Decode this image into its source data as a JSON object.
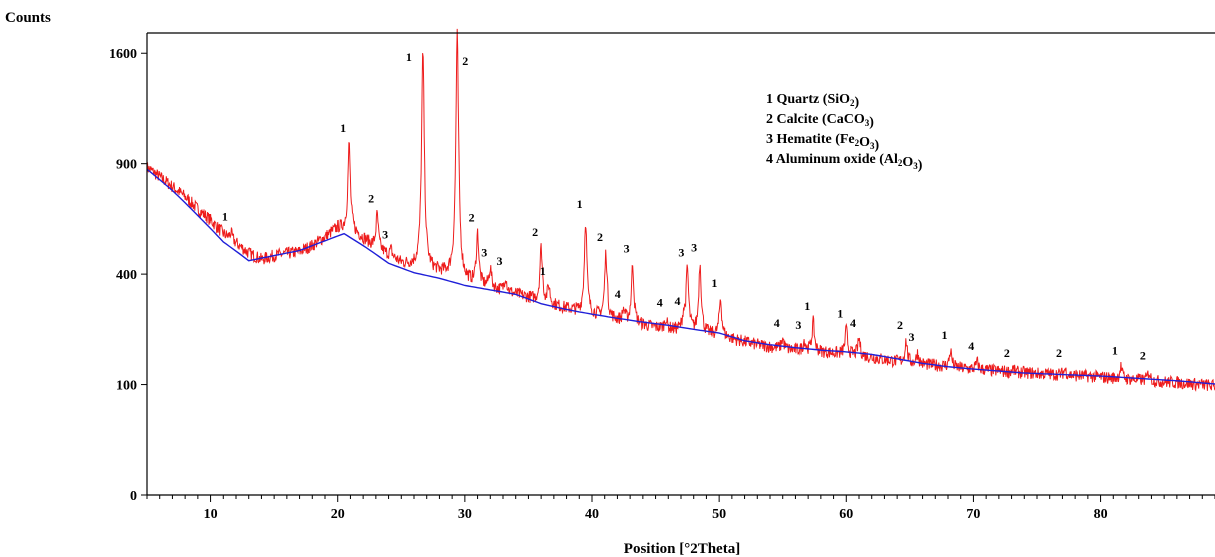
{
  "chart_data": {
    "type": "line",
    "title": "",
    "xlabel": "Position [°2Theta]",
    "ylabel": "Counts",
    "xlim": [
      5,
      89
    ],
    "y_scale": "sqrt",
    "ylim": [
      0,
      1750
    ],
    "x_ticks": [
      10,
      20,
      30,
      40,
      50,
      60,
      70,
      80
    ],
    "y_ticks": [
      0,
      100,
      400,
      900,
      1600
    ],
    "grid": false,
    "legend_placement": "top-right",
    "colors": {
      "measured": "#ee1c1c",
      "background": "#1f1fd8"
    },
    "series": [
      {
        "color": "#ee1c1c",
        "role": "measured",
        "x": [
          5,
          6,
          7,
          8,
          9,
          10,
          11,
          12,
          13,
          14,
          15,
          16,
          17,
          18,
          19,
          20,
          21,
          22,
          23,
          24,
          25,
          26,
          27,
          28,
          29,
          30,
          31,
          32,
          33,
          34,
          35,
          36,
          37,
          38,
          39,
          40,
          41,
          42,
          43,
          44,
          45,
          46,
          47,
          48,
          49,
          50,
          51,
          52,
          53,
          54,
          55,
          56,
          57,
          58,
          59,
          60,
          61,
          62,
          63,
          64,
          65,
          66,
          67,
          68,
          69,
          70,
          71,
          72,
          73,
          74,
          75,
          76,
          77,
          78,
          79,
          80,
          81,
          82,
          83,
          84,
          85,
          86,
          87,
          88,
          89
        ],
        "y": [
          880,
          830,
          780,
          730,
          670,
          620,
          560,
          520,
          480,
          455,
          470,
          478,
          485,
          510,
          545,
          585,
          575,
          540,
          500,
          470,
          440,
          430,
          418,
          405,
          395,
          375,
          360,
          352,
          340,
          330,
          320,
          305,
          295,
          285,
          275,
          266,
          258,
          250,
          242,
          236,
          230,
          225,
          222,
          218,
          213,
          208,
          200,
          192,
          185,
          180,
          175,
          172,
          170,
          168,
          165,
          162,
          159,
          155,
          150,
          146,
          142,
          140,
          138,
          135,
          132,
          130,
          128,
          126,
          124,
          123,
          121,
          120,
          119,
          117,
          116,
          114,
          112,
          110,
          109,
          107,
          105,
          104,
          102,
          100,
          98
        ]
      },
      {
        "color": "#1f1fd8",
        "role": "background",
        "x": [
          5,
          7,
          9,
          11,
          13,
          15,
          17,
          19,
          20.5,
          22,
          24,
          26,
          28,
          30,
          32,
          34,
          36,
          38,
          40,
          42,
          44,
          46,
          48,
          50,
          52,
          54,
          56,
          58,
          60,
          62,
          64,
          66,
          68,
          70,
          72,
          74,
          76,
          78,
          80,
          82,
          84,
          86,
          88,
          89
        ],
        "y": [
          870,
          760,
          640,
          525,
          450,
          470,
          490,
          530,
          560,
          510,
          440,
          405,
          385,
          360,
          345,
          330,
          300,
          282,
          268,
          256,
          245,
          236,
          225,
          215,
          195,
          185,
          178,
          172,
          168,
          162,
          152,
          142,
          135,
          130,
          126,
          122,
          120,
          118,
          116,
          113,
          110,
          107,
          103,
          101
        ]
      }
    ],
    "peaks": [
      {
        "x": 11.6,
        "y": 565,
        "label": "1"
      },
      {
        "x": 20.9,
        "y": 1010,
        "label": "1"
      },
      {
        "x": 23.1,
        "y": 645,
        "label": "2"
      },
      {
        "x": 24.2,
        "y": 490,
        "label": "3"
      },
      {
        "x": 26.7,
        "y": 1600,
        "label": "1"
      },
      {
        "x": 29.4,
        "y": 1740,
        "label": "2"
      },
      {
        "x": 31.0,
        "y": 560,
        "label": "2"
      },
      {
        "x": 32.0,
        "y": 420,
        "label": "3"
      },
      {
        "x": 33.2,
        "y": 390,
        "label": "3"
      },
      {
        "x": 36.0,
        "y": 500,
        "label": "2"
      },
      {
        "x": 36.6,
        "y": 355,
        "label": "1"
      },
      {
        "x": 39.5,
        "y": 620,
        "label": "1"
      },
      {
        "x": 41.1,
        "y": 480,
        "label": "2"
      },
      {
        "x": 42.5,
        "y": 280,
        "label": "4"
      },
      {
        "x": 43.2,
        "y": 435,
        "label": "3"
      },
      {
        "x": 45.8,
        "y": 255,
        "label": "4"
      },
      {
        "x": 47.2,
        "y": 260,
        "label": "4"
      },
      {
        "x": 47.5,
        "y": 420,
        "label": "3"
      },
      {
        "x": 48.5,
        "y": 440,
        "label": "3"
      },
      {
        "x": 50.1,
        "y": 315,
        "label": "1"
      },
      {
        "x": 55.0,
        "y": 200,
        "label": "4"
      },
      {
        "x": 56.7,
        "y": 195,
        "label": "3"
      },
      {
        "x": 57.4,
        "y": 245,
        "label": "1"
      },
      {
        "x": 60.0,
        "y": 225,
        "label": "1"
      },
      {
        "x": 61.0,
        "y": 200,
        "label": "4"
      },
      {
        "x": 64.7,
        "y": 195,
        "label": "2"
      },
      {
        "x": 65.6,
        "y": 165,
        "label": "3"
      },
      {
        "x": 68.2,
        "y": 170,
        "label": "1"
      },
      {
        "x": 70.3,
        "y": 145,
        "label": "4"
      },
      {
        "x": 73.1,
        "y": 130,
        "label": "2"
      },
      {
        "x": 77.2,
        "y": 130,
        "label": "2"
      },
      {
        "x": 81.6,
        "y": 135,
        "label": "1"
      },
      {
        "x": 83.8,
        "y": 125,
        "label": "2"
      }
    ],
    "legend": [
      {
        "num": "1",
        "name": "Quartz",
        "formula": [
          [
            "SiO",
            ""
          ],
          [
            "2",
            "sub"
          ]
        ]
      },
      {
        "num": "2",
        "name": "Calcite",
        "formula": [
          [
            "CaCO",
            ""
          ],
          [
            "3",
            "sub"
          ]
        ]
      },
      {
        "num": "3",
        "name": "Hematite",
        "formula": [
          [
            "Fe",
            ""
          ],
          [
            "2",
            "sub"
          ],
          [
            "O",
            ""
          ],
          [
            "3",
            "sub"
          ]
        ]
      },
      {
        "num": "4",
        "name": "Aluminum oxide",
        "formula": [
          [
            "Al",
            ""
          ],
          [
            "2",
            "sub"
          ],
          [
            "O",
            ""
          ],
          [
            "3",
            "sub"
          ]
        ]
      }
    ]
  }
}
